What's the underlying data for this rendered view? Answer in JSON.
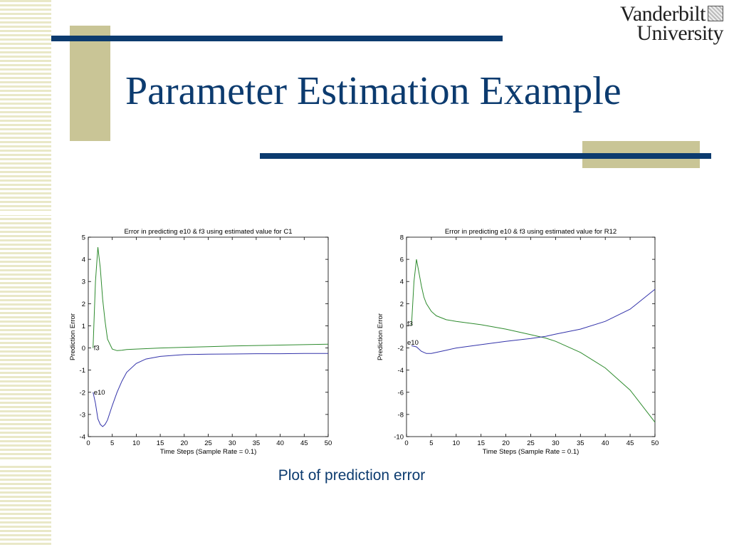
{
  "slide": {
    "title": "Parameter Estimation Example",
    "caption": "Plot of prediction error",
    "logo": {
      "line1": "Vanderbilt",
      "line2": "University"
    },
    "colors": {
      "accent": "#0c3b6f",
      "deco_block": "#c9c596",
      "stripes": "#e9e8c7"
    }
  },
  "chart_data": [
    {
      "type": "line",
      "title": "Error in predicting e10 & f3 using estimated value for C1",
      "xlabel": "Time Steps (Sample Rate = 0.1)",
      "ylabel": "Prediction Error",
      "xlim": [
        0,
        50
      ],
      "ylim": [
        -4,
        5
      ],
      "xticks": [
        0,
        5,
        10,
        15,
        20,
        25,
        30,
        35,
        40,
        45,
        50
      ],
      "yticks": [
        -4,
        -3,
        -2,
        -1,
        0,
        1,
        2,
        3,
        4,
        5
      ],
      "grid": false,
      "series": [
        {
          "name": "f3",
          "color": "#2e8b2e",
          "x": [
            1,
            1.5,
            2,
            2.5,
            3,
            3.5,
            4,
            5,
            6,
            7,
            8,
            10,
            15,
            20,
            25,
            30,
            35,
            40,
            45,
            50
          ],
          "y": [
            0,
            3,
            4.55,
            3.6,
            2.2,
            1.2,
            0.4,
            -0.05,
            -0.12,
            -0.1,
            -0.07,
            -0.05,
            0,
            0.03,
            0.06,
            0.09,
            0.11,
            0.13,
            0.15,
            0.17
          ]
        },
        {
          "name": "e10",
          "color": "#3333aa",
          "x": [
            1,
            1.5,
            2,
            2.5,
            3,
            3.5,
            4,
            5,
            6,
            7,
            8,
            10,
            12,
            15,
            20,
            25,
            30,
            35,
            40,
            45,
            50
          ],
          "y": [
            -2,
            -2.5,
            -3.2,
            -3.45,
            -3.55,
            -3.45,
            -3.25,
            -2.6,
            -2.0,
            -1.5,
            -1.1,
            -0.7,
            -0.5,
            -0.38,
            -0.3,
            -0.28,
            -0.27,
            -0.26,
            -0.26,
            -0.25,
            -0.25
          ]
        }
      ]
    },
    {
      "type": "line",
      "title": "Error in predicting e10 & f3 using estimated value for R12",
      "xlabel": "Time Steps (Sample Rate = 0.1)",
      "ylabel": "Prediction Error",
      "xlim": [
        0,
        50
      ],
      "ylim": [
        -10,
        8
      ],
      "xticks": [
        0,
        5,
        10,
        15,
        20,
        25,
        30,
        35,
        40,
        45,
        50
      ],
      "yticks": [
        -10,
        -8,
        -6,
        -4,
        -2,
        0,
        2,
        4,
        6,
        8
      ],
      "grid": false,
      "series": [
        {
          "name": "f3",
          "color": "#2e8b2e",
          "x": [
            1,
            1.5,
            2,
            2.5,
            3,
            3.5,
            4,
            5,
            6,
            8,
            10,
            15,
            20,
            25,
            28,
            30,
            35,
            40,
            45,
            50
          ],
          "y": [
            0,
            4,
            6.0,
            4.8,
            3.6,
            2.6,
            2.0,
            1.3,
            0.9,
            0.55,
            0.4,
            0.1,
            -0.3,
            -0.8,
            -1.1,
            -1.4,
            -2.4,
            -3.8,
            -5.8,
            -8.7
          ]
        },
        {
          "name": "e10",
          "color": "#3333aa",
          "x": [
            1,
            2,
            3,
            4,
            5,
            6,
            8,
            10,
            15,
            20,
            25,
            28,
            30,
            35,
            40,
            45,
            50
          ],
          "y": [
            -1.8,
            -1.9,
            -2.3,
            -2.5,
            -2.5,
            -2.4,
            -2.2,
            -2.0,
            -1.7,
            -1.4,
            -1.15,
            -0.95,
            -0.75,
            -0.3,
            0.4,
            1.5,
            3.3
          ]
        }
      ]
    }
  ]
}
